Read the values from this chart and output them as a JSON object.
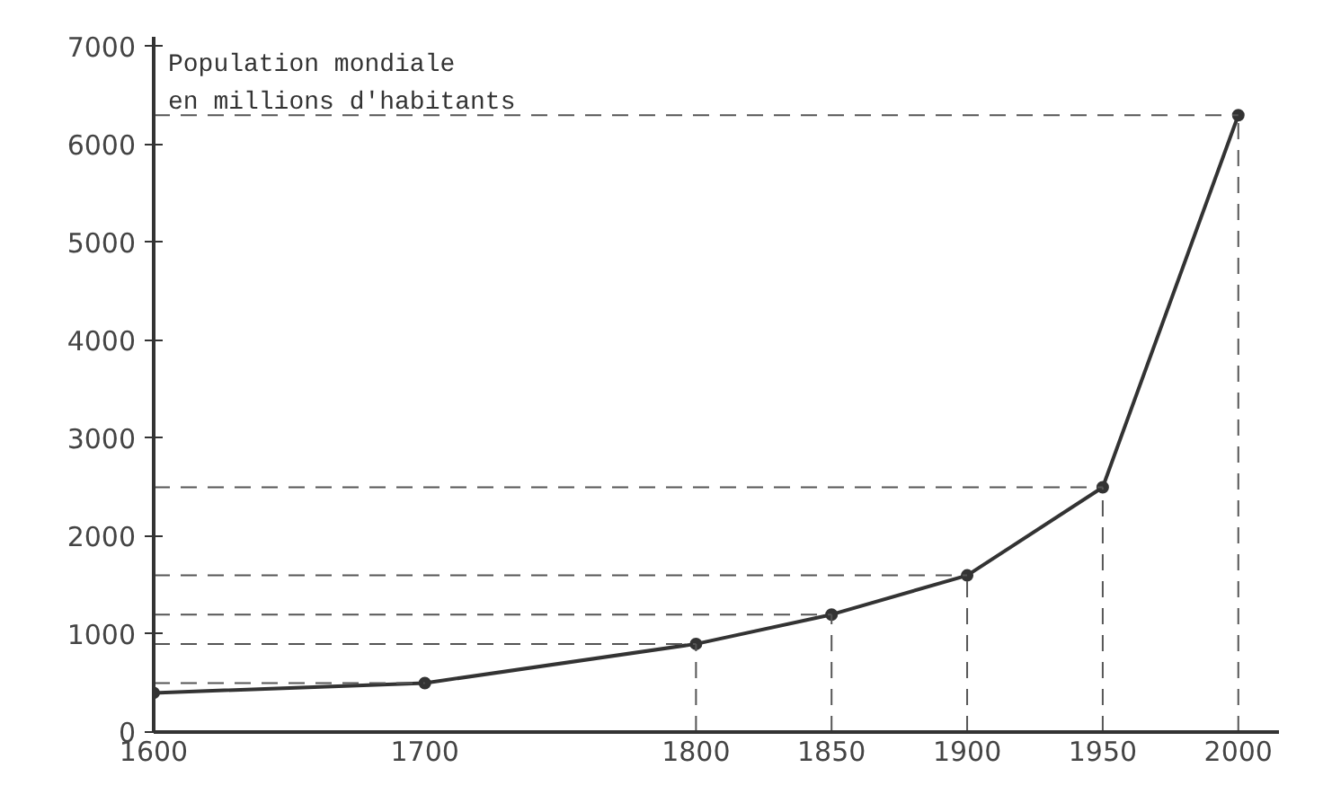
{
  "chart_data": {
    "type": "line",
    "title": "Population mondiale\nen millions d'habitants",
    "x": [
      1600,
      1700,
      1800,
      1850,
      1900,
      1950,
      2000
    ],
    "series": [
      {
        "color": "#333333",
        "values": [
          400,
          500,
          900,
          1200,
          1600,
          2500,
          6300
        ]
      }
    ],
    "xlim": [
      1600,
      2015
    ],
    "xticks": [
      1600,
      1700,
      1800,
      1850,
      1900,
      1950,
      2000
    ],
    "ylim": [
      0,
      7100
    ],
    "yticks": [
      0,
      1000,
      2000,
      3000,
      4000,
      5000,
      6000,
      7000
    ],
    "ref_lines": [
      {
        "axis": "y",
        "value": 500,
        "line_style": "dashed",
        "color": "#555555"
      },
      {
        "axis": "y",
        "value": 900,
        "line_style": "dashed",
        "color": "#555555"
      },
      {
        "axis": "y",
        "value": 1200,
        "line_style": "dashed",
        "color": "#555555"
      },
      {
        "axis": "y",
        "value": 1600,
        "line_style": "dashed",
        "color": "#555555"
      },
      {
        "axis": "y",
        "value": 2500,
        "line_style": "dashed",
        "color": "#555555"
      },
      {
        "axis": "y",
        "value": 6300,
        "line_style": "dashed",
        "color": "#555555"
      },
      {
        "axis": "x",
        "value": 1800,
        "line_style": "dashed",
        "color": "#555555"
      },
      {
        "axis": "x",
        "value": 1850,
        "line_style": "dashed",
        "color": "#555555"
      },
      {
        "axis": "x",
        "value": 1900,
        "line_style": "dashed",
        "color": "#555555"
      },
      {
        "axis": "x",
        "value": 1950,
        "line_style": "dashed",
        "color": "#555555"
      },
      {
        "axis": "x",
        "value": 2000,
        "line_style": "dashed",
        "color": "#555555"
      }
    ],
    "grid": false,
    "marker": "circle",
    "line_style": "solid"
  }
}
